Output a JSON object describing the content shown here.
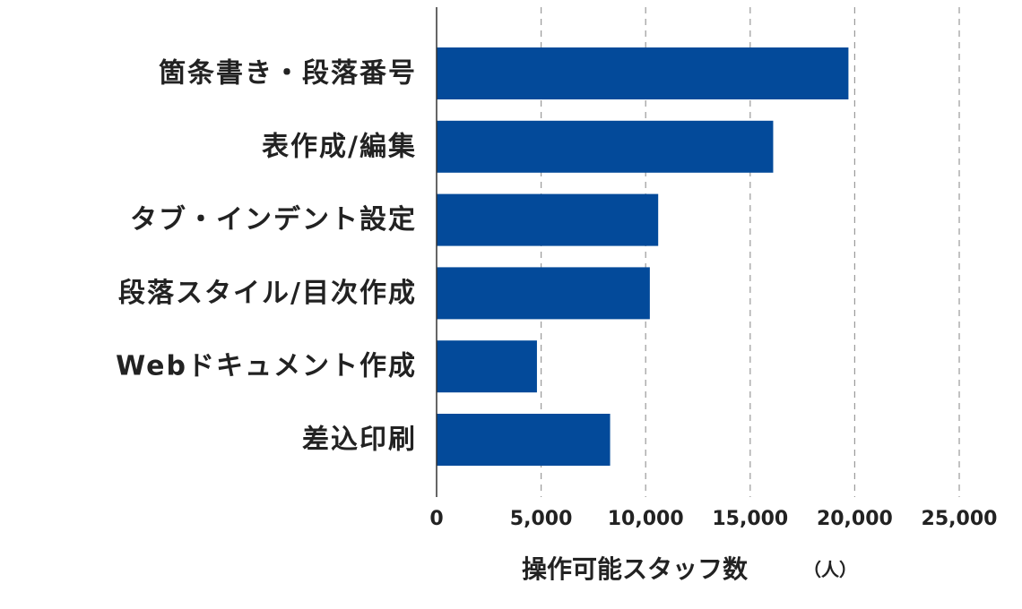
{
  "chart_data": {
    "type": "bar",
    "orientation": "horizontal",
    "categories": [
      "箇条書き・段落番号",
      "表作成/編集",
      "タブ・インデント設定",
      "段落スタイル/目次作成",
      "Webドキュメント作成",
      "差込印刷"
    ],
    "values": [
      19700,
      16100,
      10600,
      10200,
      4800,
      8300
    ],
    "xlabel": "操作可能スタッフ数",
    "xunit": "（人）",
    "xlim": [
      0,
      25000
    ],
    "xticks": [
      0,
      5000,
      10000,
      15000,
      20000,
      25000
    ],
    "xtick_labels": [
      "0",
      "5,000",
      "10,000",
      "15,000",
      "20,000",
      "25,000"
    ],
    "grid": "vertical-dashed",
    "bar_color": "#034a9a",
    "grid_color": "#9a9a9a",
    "axis_color": "#333333"
  }
}
